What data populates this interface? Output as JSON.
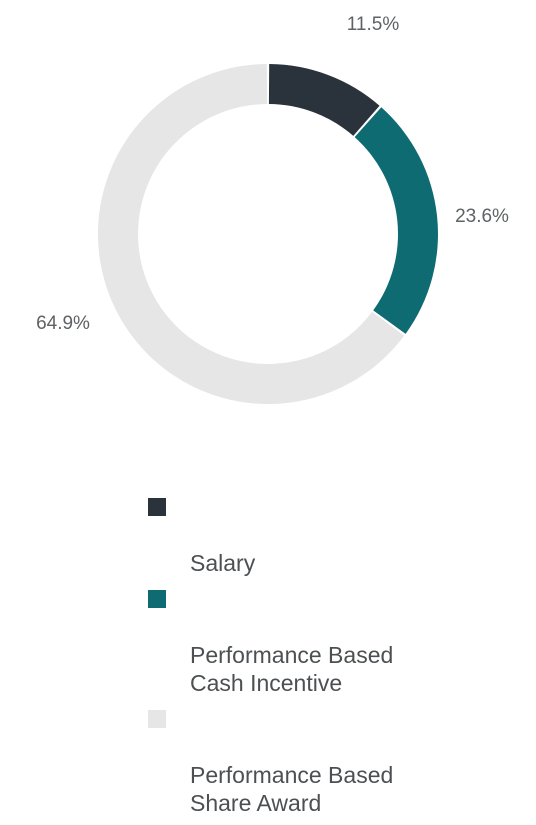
{
  "chart_data": {
    "type": "pie",
    "style": "donut",
    "title": "",
    "categories": [
      "Salary",
      "Performance Based\nCash Incentive",
      "Performance Based\nShare Award"
    ],
    "values": [
      11.5,
      23.6,
      64.9
    ],
    "labels": [
      "11.5%",
      "23.6%",
      "64.9%"
    ],
    "colors": [
      "#2a333b",
      "#0e6b72",
      "#e6e6e6"
    ],
    "legend_position": "bottom"
  }
}
